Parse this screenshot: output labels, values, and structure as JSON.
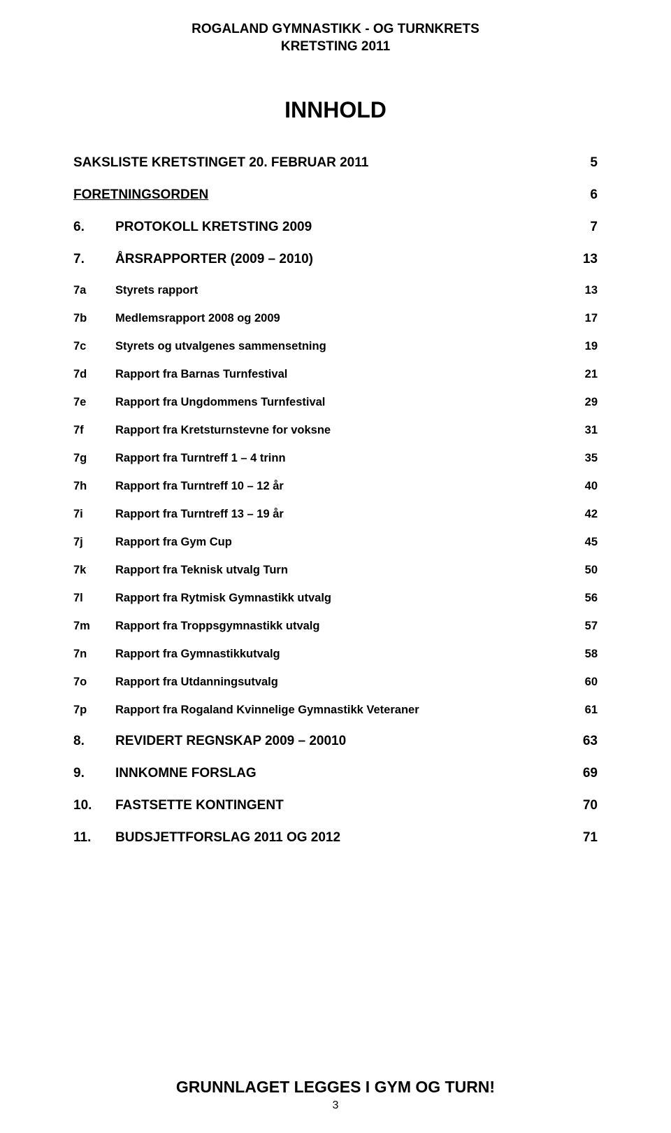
{
  "header": {
    "line1": "ROGALAND GYMNASTIKK - OG TURNKRETS",
    "line2": "KRETSTING 2011"
  },
  "title": "INNHOLD",
  "sections": [
    {
      "kind": "section",
      "first": true,
      "label": "SAKSLISTE KRETSTINGET 20. FEBRUAR 2011",
      "page": "5"
    },
    {
      "kind": "section",
      "underline": true,
      "label": "FORETNINGSORDEN",
      "page": "6"
    },
    {
      "kind": "section",
      "num": "6.",
      "label": "PROTOKOLL KRETSTING 2009",
      "page": "7"
    },
    {
      "kind": "section",
      "num": "7.",
      "label": "ÅRSRAPPORTER (2009 – 2010)",
      "page": "13"
    },
    {
      "kind": "sub",
      "num": "7a",
      "label": "Styrets rapport",
      "page": "13"
    },
    {
      "kind": "sub",
      "num": "7b",
      "label": "Medlemsrapport 2008 og 2009",
      "page": "17"
    },
    {
      "kind": "sub",
      "num": "7c",
      "label": "Styrets og utvalgenes sammensetning",
      "page": "19"
    },
    {
      "kind": "sub",
      "num": "7d",
      "label": "Rapport fra Barnas Turnfestival",
      "page": "21"
    },
    {
      "kind": "sub",
      "num": "7e",
      "label": "Rapport fra Ungdommens Turnfestival",
      "page": "29"
    },
    {
      "kind": "sub",
      "num": "7f",
      "label": "Rapport fra Kretsturnstevne for voksne",
      "page": "31"
    },
    {
      "kind": "sub",
      "num": "7g",
      "label": "Rapport fra Turntreff 1 – 4 trinn",
      "page": "35"
    },
    {
      "kind": "sub",
      "num": "7h",
      "label": "Rapport fra Turntreff 10 – 12 år",
      "page": "40"
    },
    {
      "kind": "sub",
      "num": "7i",
      "label": "Rapport fra Turntreff 13 – 19 år",
      "page": "42"
    },
    {
      "kind": "sub",
      "num": "7j",
      "label": "Rapport fra Gym Cup",
      "page": "45"
    },
    {
      "kind": "sub",
      "num": "7k",
      "label": "Rapport fra Teknisk utvalg Turn",
      "page": "50"
    },
    {
      "kind": "sub",
      "num": "7l",
      "label": "Rapport fra Rytmisk Gymnastikk utvalg",
      "page": "56"
    },
    {
      "kind": "sub",
      "num": "7m",
      "label": "Rapport fra Troppsgymnastikk utvalg",
      "page": "57"
    },
    {
      "kind": "sub",
      "num": "7n",
      "label": "Rapport fra Gymnastikkutvalg",
      "page": "58"
    },
    {
      "kind": "sub",
      "num": "7o",
      "label": "Rapport fra Utdanningsutvalg",
      "page": "60"
    },
    {
      "kind": "sub",
      "num": "7p",
      "label": "Rapport fra Rogaland Kvinnelige Gymnastikk Veteraner",
      "page": "61"
    },
    {
      "kind": "section",
      "num": "8.",
      "label": "REVIDERT REGNSKAP 2009 – 20010",
      "page": "63"
    },
    {
      "kind": "section",
      "num": "9.",
      "label": "INNKOMNE FORSLAG",
      "page": "69"
    },
    {
      "kind": "section",
      "num": "10.",
      "label": "FASTSETTE KONTINGENT",
      "page": "70"
    },
    {
      "kind": "section",
      "num": "11.",
      "label": "BUDSJETTFORSLAG 2011 OG 2012",
      "page": "71"
    }
  ],
  "footer": {
    "tagline": "GRUNNLAGET LEGGES I GYM OG TURN!",
    "pagenum": "3"
  }
}
